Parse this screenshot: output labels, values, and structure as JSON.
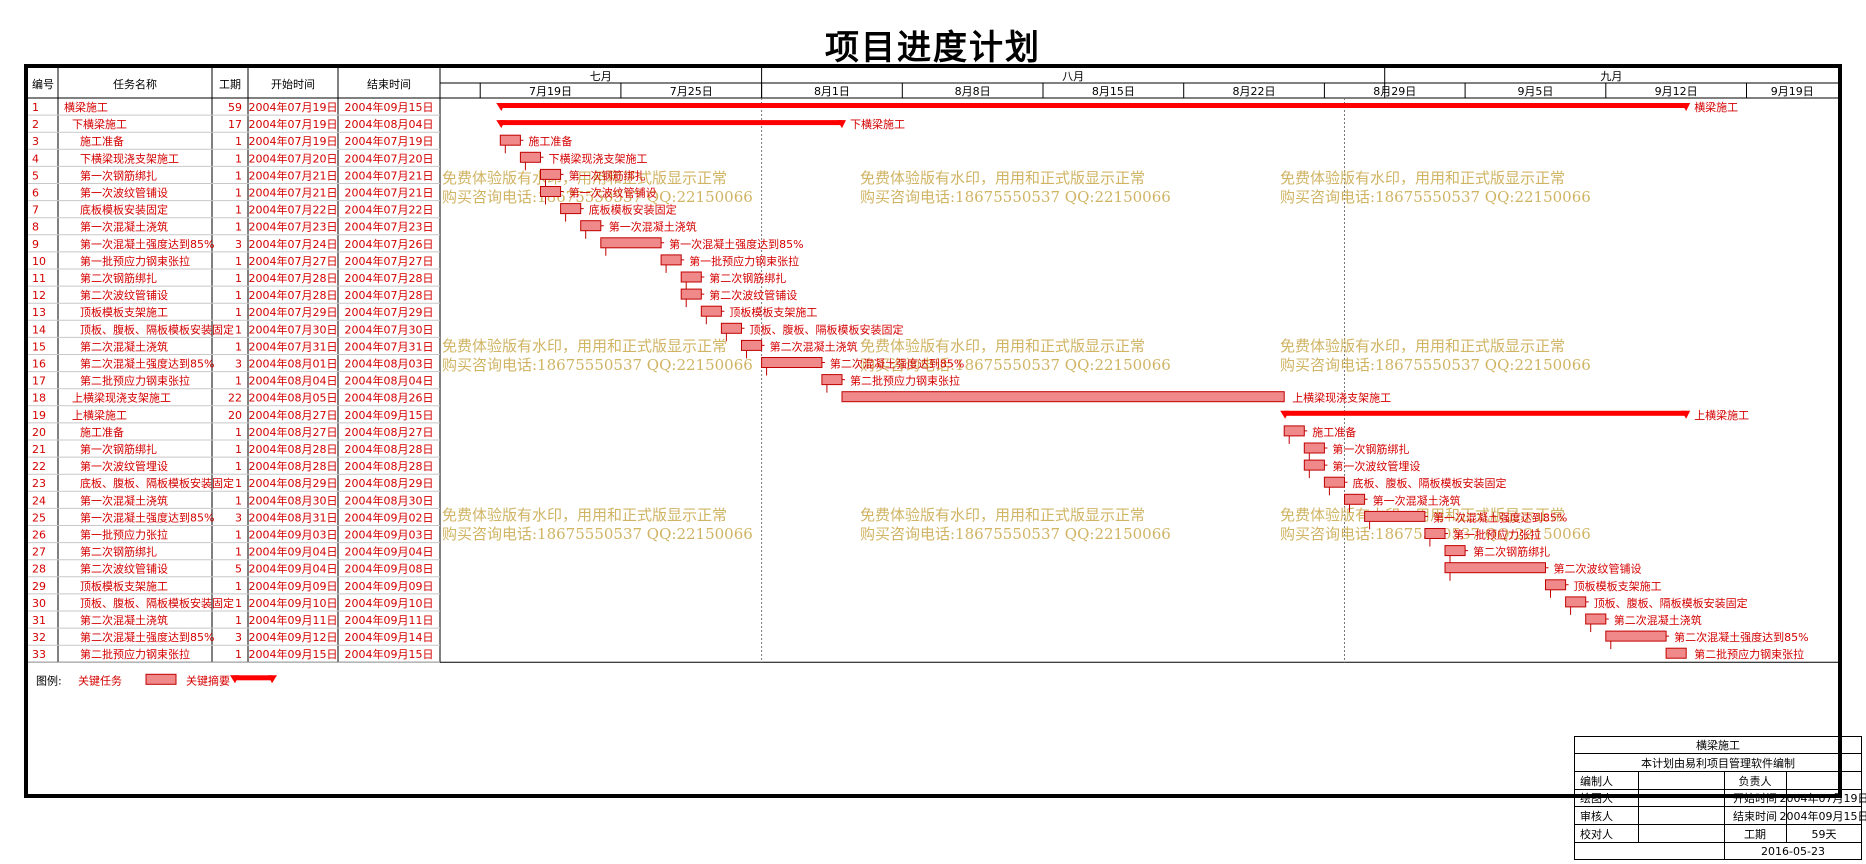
{
  "page_title": "项目进度计划",
  "columns": {
    "id": "编号",
    "name": "任务名称",
    "duration": "工期",
    "start": "开始时间",
    "end": "结束时间"
  },
  "months": [
    "七月",
    "八月",
    "九月"
  ],
  "weeks": [
    "7月19日",
    "7月25日",
    "8月1日",
    "8月8日",
    "8月15日",
    "8月22日",
    "8月29日",
    "9月5日",
    "9月12日",
    "9月19日"
  ],
  "tasks": [
    {
      "id": "1",
      "name": "横梁施工",
      "dur": "59",
      "start": "2004年07月19日",
      "end": "2004年09月15日",
      "s": "2004-07-19",
      "e": "2004-09-15",
      "summary": true,
      "level": 0
    },
    {
      "id": "2",
      "name": "下横梁施工",
      "dur": "17",
      "start": "2004年07月19日",
      "end": "2004年08月04日",
      "s": "2004-07-19",
      "e": "2004-08-04",
      "summary": true,
      "level": 1
    },
    {
      "id": "3",
      "name": "施工准备",
      "dur": "1",
      "start": "2004年07月19日",
      "end": "2004年07月19日",
      "s": "2004-07-19",
      "e": "2004-07-19",
      "level": 2
    },
    {
      "id": "4",
      "name": "下横梁现浇支架施工",
      "dur": "1",
      "start": "2004年07月20日",
      "end": "2004年07月20日",
      "s": "2004-07-20",
      "e": "2004-07-20",
      "level": 2
    },
    {
      "id": "5",
      "name": "第一次钢筋绑扎",
      "dur": "1",
      "start": "2004年07月21日",
      "end": "2004年07月21日",
      "s": "2004-07-21",
      "e": "2004-07-21",
      "level": 2
    },
    {
      "id": "6",
      "name": "第一次波纹管铺设",
      "dur": "1",
      "start": "2004年07月21日",
      "end": "2004年07月21日",
      "s": "2004-07-21",
      "e": "2004-07-21",
      "level": 2
    },
    {
      "id": "7",
      "name": "底板模板安装固定",
      "dur": "1",
      "start": "2004年07月22日",
      "end": "2004年07月22日",
      "s": "2004-07-22",
      "e": "2004-07-22",
      "level": 2
    },
    {
      "id": "8",
      "name": "第一次混凝土浇筑",
      "dur": "1",
      "start": "2004年07月23日",
      "end": "2004年07月23日",
      "s": "2004-07-23",
      "e": "2004-07-23",
      "level": 2
    },
    {
      "id": "9",
      "name": "第一次混凝土强度达到85%",
      "dur": "3",
      "start": "2004年07月24日",
      "end": "2004年07月26日",
      "s": "2004-07-24",
      "e": "2004-07-26",
      "level": 2
    },
    {
      "id": "10",
      "name": "第一批预应力钢束张拉",
      "dur": "1",
      "start": "2004年07月27日",
      "end": "2004年07月27日",
      "s": "2004-07-27",
      "e": "2004-07-27",
      "level": 2
    },
    {
      "id": "11",
      "name": "第二次钢筋绑扎",
      "dur": "1",
      "start": "2004年07月28日",
      "end": "2004年07月28日",
      "s": "2004-07-28",
      "e": "2004-07-28",
      "level": 2
    },
    {
      "id": "12",
      "name": "第二次波纹管铺设",
      "dur": "1",
      "start": "2004年07月28日",
      "end": "2004年07月28日",
      "s": "2004-07-28",
      "e": "2004-07-28",
      "level": 2
    },
    {
      "id": "13",
      "name": "顶板模板支架施工",
      "dur": "1",
      "start": "2004年07月29日",
      "end": "2004年07月29日",
      "s": "2004-07-29",
      "e": "2004-07-29",
      "level": 2
    },
    {
      "id": "14",
      "name": "顶板、腹板、隔板模板安装固定",
      "dur": "1",
      "start": "2004年07月30日",
      "end": "2004年07月30日",
      "s": "2004-07-30",
      "e": "2004-07-30",
      "level": 2
    },
    {
      "id": "15",
      "name": "第二次混凝土浇筑",
      "dur": "1",
      "start": "2004年07月31日",
      "end": "2004年07月31日",
      "s": "2004-07-31",
      "e": "2004-07-31",
      "level": 2
    },
    {
      "id": "16",
      "name": "第二次混凝土强度达到85%",
      "dur": "3",
      "start": "2004年08月01日",
      "end": "2004年08月03日",
      "s": "2004-08-01",
      "e": "2004-08-03",
      "level": 2
    },
    {
      "id": "17",
      "name": "第二批预应力钢束张拉",
      "dur": "1",
      "start": "2004年08月04日",
      "end": "2004年08月04日",
      "s": "2004-08-04",
      "e": "2004-08-04",
      "level": 2
    },
    {
      "id": "18",
      "name": "上横梁现浇支架施工",
      "dur": "22",
      "start": "2004年08月05日",
      "end": "2004年08月26日",
      "s": "2004-08-05",
      "e": "2004-08-26",
      "level": 1
    },
    {
      "id": "19",
      "name": "上横梁施工",
      "dur": "20",
      "start": "2004年08月27日",
      "end": "2004年09月15日",
      "s": "2004-08-27",
      "e": "2004-09-15",
      "summary": true,
      "level": 1
    },
    {
      "id": "20",
      "name": "施工准备",
      "dur": "1",
      "start": "2004年08月27日",
      "end": "2004年08月27日",
      "s": "2004-08-27",
      "e": "2004-08-27",
      "level": 2
    },
    {
      "id": "21",
      "name": "第一次钢筋绑扎",
      "dur": "1",
      "start": "2004年08月28日",
      "end": "2004年08月28日",
      "s": "2004-08-28",
      "e": "2004-08-28",
      "level": 2
    },
    {
      "id": "22",
      "name": "第一次波纹管埋设",
      "dur": "1",
      "start": "2004年08月28日",
      "end": "2004年08月28日",
      "s": "2004-08-28",
      "e": "2004-08-28",
      "level": 2
    },
    {
      "id": "23",
      "name": "底板、腹板、隔板模板安装固定",
      "dur": "1",
      "start": "2004年08月29日",
      "end": "2004年08月29日",
      "s": "2004-08-29",
      "e": "2004-08-29",
      "level": 2
    },
    {
      "id": "24",
      "name": "第一次混凝土浇筑",
      "dur": "1",
      "start": "2004年08月30日",
      "end": "2004年08月30日",
      "s": "2004-08-30",
      "e": "2004-08-30",
      "level": 2
    },
    {
      "id": "25",
      "name": "第一次混凝土强度达到85%",
      "dur": "3",
      "start": "2004年08月31日",
      "end": "2004年09月02日",
      "s": "2004-08-31",
      "e": "2004-09-02",
      "level": 2
    },
    {
      "id": "26",
      "name": "第一批预应力张拉",
      "dur": "1",
      "start": "2004年09月03日",
      "end": "2004年09月03日",
      "s": "2004-09-03",
      "e": "2004-09-03",
      "level": 2
    },
    {
      "id": "27",
      "name": "第二次钢筋绑扎",
      "dur": "1",
      "start": "2004年09月04日",
      "end": "2004年09月04日",
      "s": "2004-09-04",
      "e": "2004-09-04",
      "level": 2
    },
    {
      "id": "28",
      "name": "第二次波纹管铺设",
      "dur": "5",
      "start": "2004年09月04日",
      "end": "2004年09月08日",
      "s": "2004-09-04",
      "e": "2004-09-08",
      "level": 2
    },
    {
      "id": "29",
      "name": "顶板模板支架施工",
      "dur": "1",
      "start": "2004年09月09日",
      "end": "2004年09月09日",
      "s": "2004-09-09",
      "e": "2004-09-09",
      "level": 2
    },
    {
      "id": "30",
      "name": "顶板、腹板、隔板模板安装固定",
      "dur": "1",
      "start": "2004年09月10日",
      "end": "2004年09月10日",
      "s": "2004-09-10",
      "e": "2004-09-10",
      "level": 2
    },
    {
      "id": "31",
      "name": "第二次混凝土浇筑",
      "dur": "1",
      "start": "2004年09月11日",
      "end": "2004年09月11日",
      "s": "2004-09-11",
      "e": "2004-09-11",
      "level": 2
    },
    {
      "id": "32",
      "name": "第二次混凝土强度达到85%",
      "dur": "3",
      "start": "2004年09月12日",
      "end": "2004年09月14日",
      "s": "2004-09-12",
      "e": "2004-09-14",
      "level": 2
    },
    {
      "id": "33",
      "name": "第二批预应力钢束张拉",
      "dur": "1",
      "start": "2004年09月15日",
      "end": "2004年09月15日",
      "s": "2004-09-15",
      "e": "2004-09-15",
      "level": 2
    }
  ],
  "watermark": {
    "line1": "免费体验版有水印，用用和正式版显示正常",
    "line2": "购买咨询电话:18675550537 QQ:22150066"
  },
  "legend": {
    "label": "图例:",
    "critical_task": "关键任务",
    "critical_summary": "关键摘要"
  },
  "info_box": {
    "project": "横梁施工",
    "software_note": "本计划由易利项目管理软件编制",
    "editor": "编制人",
    "owner": "负责人",
    "drawer": "绘图人",
    "start_label": "开始时间",
    "start_value": "2004年07月19日",
    "reviewer": "审核人",
    "end_label": "结束时间",
    "end_value": "2004年09月15日",
    "checker": "校对人",
    "duration_label": "工期",
    "duration_value": "59天",
    "date": "2016-05-23"
  },
  "colors": {
    "accent": "#d40000",
    "bar_fill": "#f08a8a",
    "summary": "#ff0000",
    "watermark": "#c8a84a"
  }
}
